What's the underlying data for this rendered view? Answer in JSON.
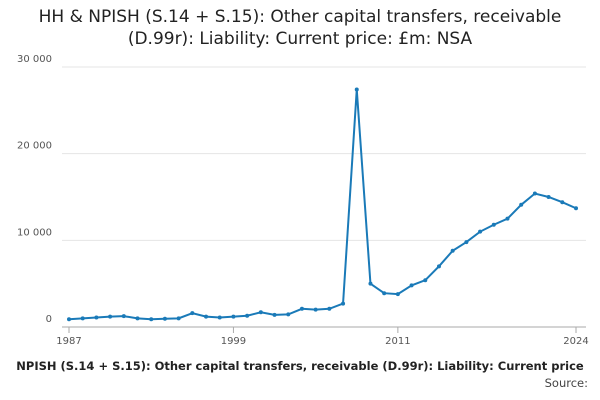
{
  "chart_data": {
    "type": "line",
    "title": "HH & NPISH (S.14 + S.15): Other capital transfers, receivable (D.99r): Liability: Current price: £m: NSA",
    "footer": "NPISH (S.14 + S.15): Other capital transfers, receivable (D.99r): Liability: Current price",
    "source": "Source:",
    "x": [
      1987,
      1988,
      1989,
      1990,
      1991,
      1992,
      1993,
      1994,
      1995,
      1996,
      1997,
      1998,
      1999,
      2000,
      2001,
      2002,
      2003,
      2004,
      2005,
      2006,
      2007,
      2008,
      2009,
      2010,
      2011,
      2012,
      2013,
      2014,
      2015,
      2016,
      2017,
      2018,
      2019,
      2020,
      2021,
      2022,
      2023,
      2024
    ],
    "series": [
      {
        "name": "HH & NPISH",
        "color": "#1a7ab8",
        "values": [
          900,
          1000,
          1100,
          1200,
          1250,
          1000,
          900,
          950,
          1000,
          1600,
          1200,
          1100,
          1200,
          1300,
          1700,
          1400,
          1450,
          2100,
          2000,
          2100,
          2700,
          27400,
          5000,
          3900,
          3800,
          4800,
          5400,
          7000,
          8800,
          9800,
          11000,
          11800,
          12500,
          14100,
          15400,
          15000,
          14400,
          13700
        ]
      }
    ],
    "xlim": [
      1987,
      2024
    ],
    "xticks": [
      1987,
      1999,
      2011,
      2024
    ],
    "ylim": [
      0,
      30000
    ],
    "yticks": [
      0,
      {
        "value": 10000,
        "label": "10 000"
      },
      {
        "value": 20000,
        "label": "20 000"
      },
      {
        "value": 30000,
        "label": "30 000"
      }
    ],
    "grid": true
  }
}
